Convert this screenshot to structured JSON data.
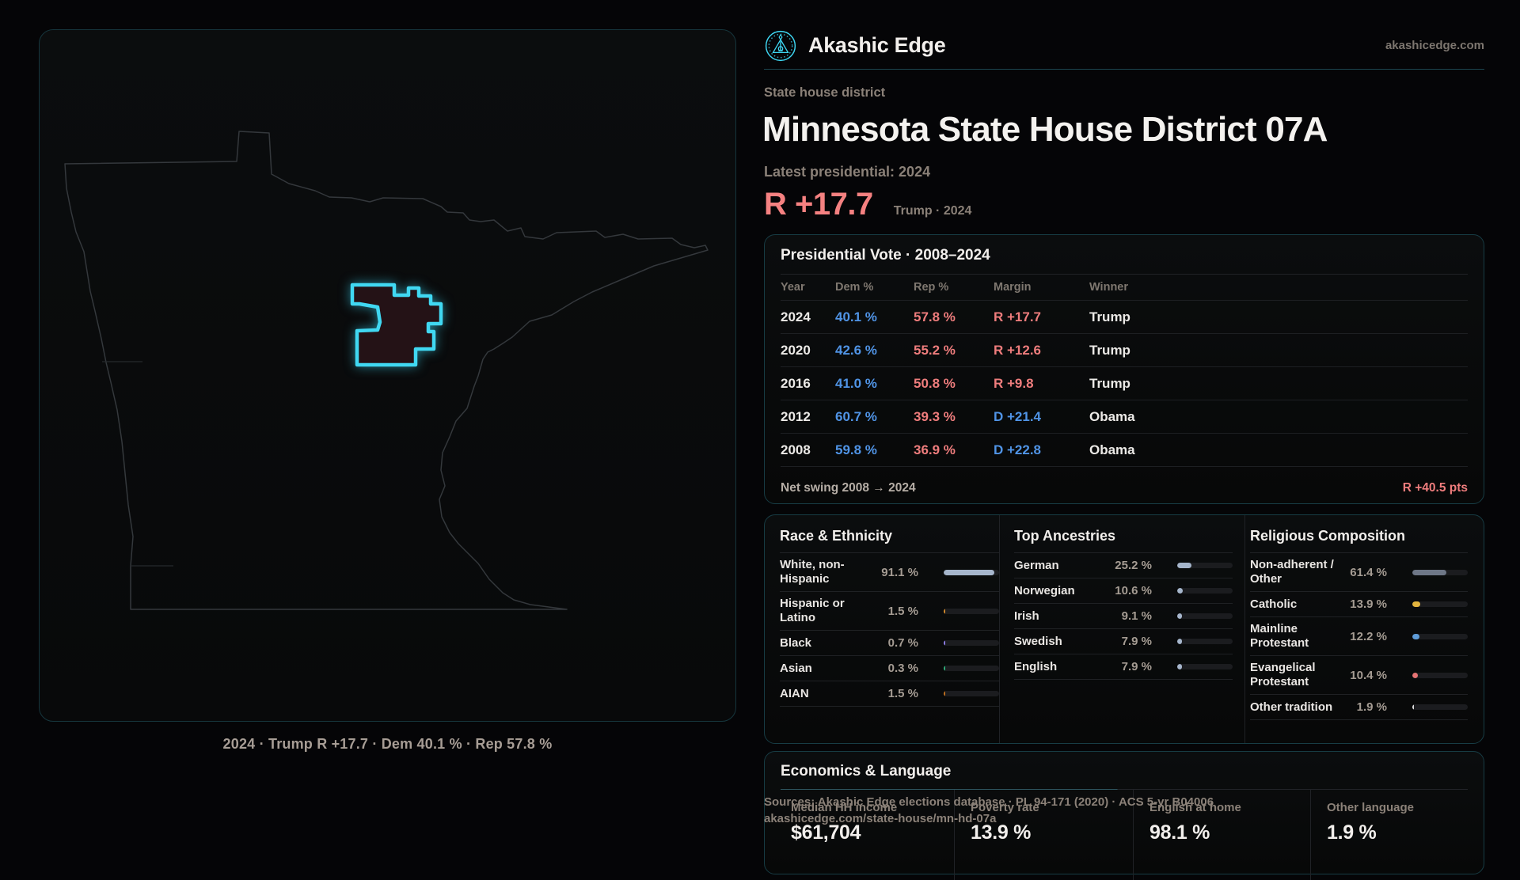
{
  "brand": {
    "name": "Akashic Edge",
    "domain": "akashicedge.com"
  },
  "page": {
    "kicker": "State house district",
    "title": "Minnesota State House District 07A",
    "latest_label": "Latest presidential: 2024",
    "margin_value": "R +17.7",
    "margin_context": "Trump · 2024"
  },
  "map": {
    "caption": "2024 · Trump R +17.7 · Dem 40.1 % · Rep 57.8 %"
  },
  "president": {
    "title": "Presidential Vote · 2008–2024",
    "columns": [
      "Year",
      "Dem %",
      "Rep %",
      "Margin",
      "Winner"
    ],
    "rows": [
      {
        "year": "2024",
        "dem": "40.1 %",
        "rep": "57.8 %",
        "margin": "R +17.7",
        "party": "R",
        "winner": "Trump"
      },
      {
        "year": "2020",
        "dem": "42.6 %",
        "rep": "55.2 %",
        "margin": "R +12.6",
        "party": "R",
        "winner": "Trump"
      },
      {
        "year": "2016",
        "dem": "41.0 %",
        "rep": "50.8 %",
        "margin": "R +9.8",
        "party": "R",
        "winner": "Trump"
      },
      {
        "year": "2012",
        "dem": "60.7 %",
        "rep": "39.3 %",
        "margin": "D +21.4",
        "party": "D",
        "winner": "Obama"
      },
      {
        "year": "2008",
        "dem": "59.8 %",
        "rep": "36.9 %",
        "margin": "D +22.8",
        "party": "D",
        "winner": "Obama"
      }
    ],
    "footer_label": "Net swing 2008 → 2024",
    "footer_value": "R +40.5 pts"
  },
  "demographics": {
    "panels": [
      {
        "title": "Race & Ethnicity",
        "rows": [
          {
            "label": "White, non-Hispanic",
            "value": "91.1 %",
            "pct": 91.1,
            "color": "#a6b6cc"
          },
          {
            "label": "Hispanic or Latino",
            "value": "1.5 %",
            "pct": 1.5,
            "color": "#d28a2d"
          },
          {
            "label": "Black",
            "value": "0.7 %",
            "pct": 0.7,
            "color": "#8f7ee8"
          },
          {
            "label": "Asian",
            "value": "0.3 %",
            "pct": 0.3,
            "color": "#2fae7a"
          },
          {
            "label": "AIAN",
            "value": "1.5 %",
            "pct": 1.5,
            "color": "#c0701f"
          }
        ]
      },
      {
        "title": "Top Ancestries",
        "rows": [
          {
            "label": "German",
            "value": "25.2 %",
            "pct": 25.2,
            "color": "#a6b6cc"
          },
          {
            "label": "Norwegian",
            "value": "10.6 %",
            "pct": 10.6,
            "color": "#a6b6cc"
          },
          {
            "label": "Irish",
            "value": "9.1 %",
            "pct": 9.1,
            "color": "#a6b6cc"
          },
          {
            "label": "Swedish",
            "value": "7.9 %",
            "pct": 7.9,
            "color": "#a6b6cc"
          },
          {
            "label": "English",
            "value": "7.9 %",
            "pct": 7.9,
            "color": "#a6b6cc"
          }
        ]
      },
      {
        "title": "Religious Composition",
        "rows": [
          {
            "label": "Non-adherent / Other",
            "value": "61.4 %",
            "pct": 61.4,
            "color": "#6e7787"
          },
          {
            "label": "Catholic",
            "value": "13.9 %",
            "pct": 13.9,
            "color": "#e3b43e"
          },
          {
            "label": "Mainline Protestant",
            "value": "12.2 %",
            "pct": 12.2,
            "color": "#5e9bd8"
          },
          {
            "label": "Evangelical Protestant",
            "value": "10.4 %",
            "pct": 10.4,
            "color": "#e57373"
          },
          {
            "label": "Other tradition",
            "value": "1.9 %",
            "pct": 1.9,
            "color": "#dcdcdc"
          }
        ]
      }
    ]
  },
  "economics": {
    "title": "Economics & Language",
    "stats": [
      {
        "label": "Median HH income",
        "value": "$61,704"
      },
      {
        "label": "Poverty rate",
        "value": "13.9 %"
      },
      {
        "label": "English at home",
        "value": "98.1 %"
      },
      {
        "label": "Other language",
        "value": "1.9 %"
      }
    ]
  },
  "source": {
    "line1": "Sources: Akashic Edge elections database · PL 94-171 (2020) · ACS 5-yr B04006",
    "line2": "akashicedge.com/state-house/mn-hd-07a"
  },
  "colors": {
    "accent": "#3ed7f3",
    "dem": "#5094e6",
    "rep": "#ef7d7d"
  }
}
